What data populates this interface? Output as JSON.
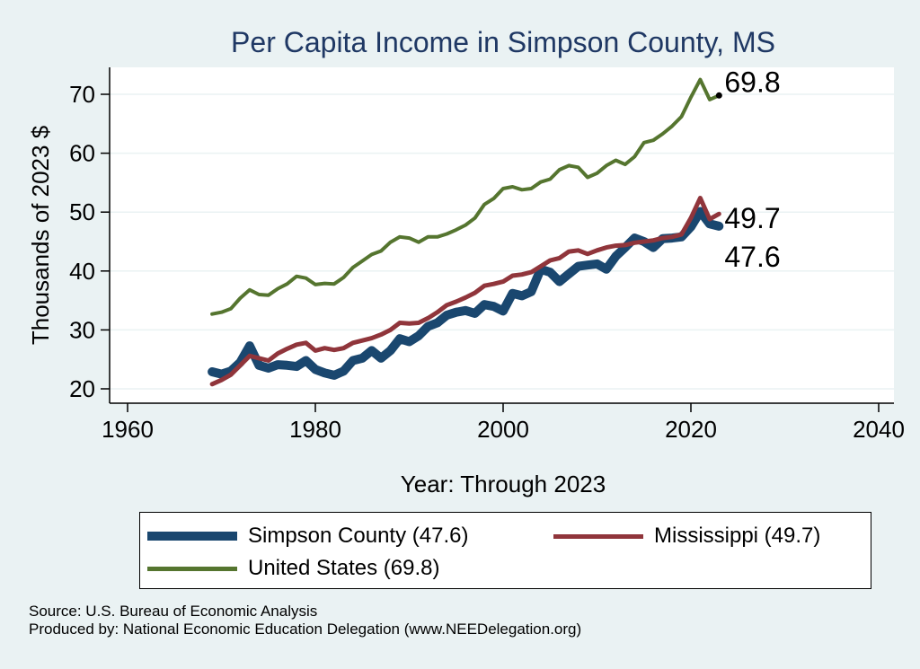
{
  "chart_data": {
    "type": "line",
    "title": "Per Capita Income in Simpson County, MS",
    "xlabel": "Year: Through 2023",
    "ylabel": "Thousands of 2023 $",
    "xlim": [
      1960,
      2040
    ],
    "ylim": [
      20,
      72
    ],
    "xticks": [
      "1960",
      "1980",
      "2000",
      "2020",
      "2040"
    ],
    "yticks": [
      "20",
      "30",
      "40",
      "50",
      "60",
      "70"
    ],
    "grid": true,
    "legend_position": "bottom",
    "x": [
      1969,
      1970,
      1971,
      1972,
      1973,
      1974,
      1975,
      1976,
      1977,
      1978,
      1979,
      1980,
      1981,
      1982,
      1983,
      1984,
      1985,
      1986,
      1987,
      1988,
      1989,
      1990,
      1991,
      1992,
      1993,
      1994,
      1995,
      1996,
      1997,
      1998,
      1999,
      2000,
      2001,
      2002,
      2003,
      2004,
      2005,
      2006,
      2007,
      2008,
      2009,
      2010,
      2011,
      2012,
      2013,
      2014,
      2015,
      2016,
      2017,
      2018,
      2019,
      2020,
      2021,
      2022,
      2023
    ],
    "series": [
      {
        "name": "Simpson County",
        "legend_label": "Simpson County (47.6)",
        "end_value": "47.6",
        "color": "#1a476f",
        "values": [
          22.9,
          22.5,
          23.0,
          24.5,
          27.3,
          24.0,
          23.5,
          24.1,
          24.0,
          23.8,
          24.8,
          23.3,
          22.7,
          22.3,
          23.0,
          24.8,
          25.2,
          26.5,
          25.2,
          26.5,
          28.5,
          28.0,
          29.0,
          30.6,
          31.2,
          32.5,
          33.0,
          33.3,
          32.8,
          34.3,
          34.0,
          33.2,
          36.2,
          35.8,
          36.5,
          40.3,
          39.8,
          38.2,
          39.5,
          40.8,
          41.0,
          41.2,
          40.3,
          42.5,
          44.0,
          45.6,
          45.0,
          44.0,
          45.5,
          45.6,
          45.8,
          47.5,
          50.1,
          48.0,
          47.6
        ]
      },
      {
        "name": "Mississippi",
        "legend_label": "Mississippi (49.7)",
        "end_value": "49.7",
        "color": "#90353b",
        "values": [
          20.8,
          21.5,
          22.4,
          24.0,
          25.6,
          25.2,
          24.8,
          26.0,
          26.8,
          27.5,
          27.8,
          26.5,
          26.9,
          26.6,
          26.9,
          27.8,
          28.2,
          28.6,
          29.2,
          30.0,
          31.2,
          31.1,
          31.2,
          32.0,
          33.0,
          34.2,
          34.8,
          35.5,
          36.3,
          37.5,
          37.8,
          38.2,
          39.2,
          39.4,
          39.8,
          40.8,
          41.8,
          42.2,
          43.3,
          43.5,
          42.9,
          43.5,
          44.0,
          44.3,
          44.4,
          44.8,
          45.0,
          45.2,
          45.6,
          45.8,
          46.2,
          49.0,
          52.4,
          48.8,
          49.7
        ]
      },
      {
        "name": "United States",
        "legend_label": "United States (69.8)",
        "end_value": "69.8",
        "color": "#55752f",
        "values": [
          32.7,
          33.0,
          33.6,
          35.4,
          36.8,
          36.0,
          35.9,
          37.0,
          37.8,
          39.1,
          38.8,
          37.7,
          37.9,
          37.8,
          38.9,
          40.6,
          41.7,
          42.8,
          43.4,
          44.9,
          45.8,
          45.6,
          44.9,
          45.8,
          45.8,
          46.3,
          47.0,
          47.8,
          49.0,
          51.3,
          52.3,
          54.0,
          54.3,
          53.8,
          54.0,
          55.1,
          55.6,
          57.2,
          57.9,
          57.6,
          55.9,
          56.6,
          57.9,
          58.8,
          58.1,
          59.4,
          61.8,
          62.2,
          63.3,
          64.6,
          66.2,
          69.5,
          72.5,
          69.1,
          69.8
        ]
      }
    ]
  },
  "notes": {
    "source": "Source: U.S. Bureau of Economic Analysis",
    "produced_by": "Produced by: National Economic Education Delegation (www.NEEDelegation.org)"
  }
}
